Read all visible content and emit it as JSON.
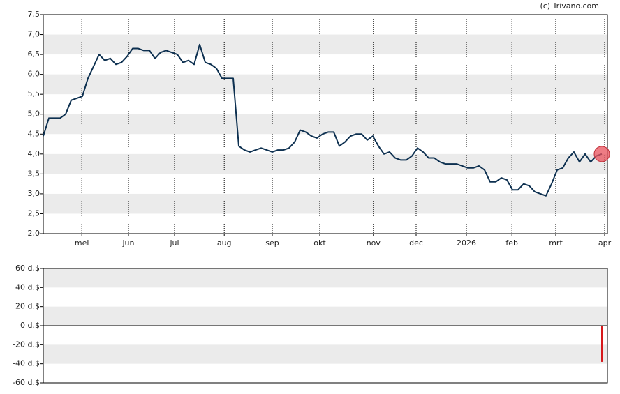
{
  "chart_data": [
    {
      "type": "line",
      "credit": "(c) Trivano.com",
      "xlim": [
        0,
        101
      ],
      "xticks": [
        {
          "value": 6.9,
          "label": "mei"
        },
        {
          "value": 15.25,
          "label": "jun"
        },
        {
          "value": 23.5,
          "label": "jul"
        },
        {
          "value": 32.4,
          "label": "aug"
        },
        {
          "value": 41,
          "label": "sep"
        },
        {
          "value": 49.5,
          "label": "okt"
        },
        {
          "value": 59.1,
          "label": "nov"
        },
        {
          "value": 66.75,
          "label": "dec"
        },
        {
          "value": 75.75,
          "label": "2026"
        },
        {
          "value": 83.9,
          "label": "feb"
        },
        {
          "value": 91.75,
          "label": "mrt"
        },
        {
          "value": 100.5,
          "label": "apr"
        }
      ],
      "ylim": [
        2.0,
        7.5
      ],
      "yticks": [
        {
          "value": 2.0,
          "label": "2,0"
        },
        {
          "value": 2.5,
          "label": "2,5"
        },
        {
          "value": 3.0,
          "label": "3,0"
        },
        {
          "value": 3.5,
          "label": "3,5"
        },
        {
          "value": 4.0,
          "label": "4,0"
        },
        {
          "value": 4.5,
          "label": "4,5"
        },
        {
          "value": 5.0,
          "label": "5,0"
        },
        {
          "value": 5.5,
          "label": "5,5"
        },
        {
          "value": 6.0,
          "label": "6,0"
        },
        {
          "value": 6.5,
          "label": "6,5"
        },
        {
          "value": 7.0,
          "label": "7,0"
        },
        {
          "value": 7.5,
          "label": "7,5"
        }
      ],
      "grid": "bands",
      "color": "#0d3050",
      "marker_color": "#e8505b",
      "values": [
        4.45,
        4.9,
        4.9,
        4.9,
        5.0,
        5.35,
        5.4,
        5.45,
        5.9,
        6.2,
        6.5,
        6.35,
        6.4,
        6.25,
        6.3,
        6.45,
        6.65,
        6.65,
        6.6,
        6.6,
        6.4,
        6.55,
        6.6,
        6.55,
        6.5,
        6.3,
        6.35,
        6.25,
        6.75,
        6.3,
        6.25,
        6.15,
        5.9,
        5.9,
        5.9,
        4.2,
        4.1,
        4.05,
        4.1,
        4.15,
        4.1,
        4.05,
        4.1,
        4.1,
        4.15,
        4.3,
        4.6,
        4.55,
        4.45,
        4.4,
        4.5,
        4.55,
        4.55,
        4.2,
        4.3,
        4.45,
        4.5,
        4.5,
        4.35,
        4.45,
        4.2,
        4.0,
        4.05,
        3.9,
        3.85,
        3.85,
        3.95,
        4.15,
        4.05,
        3.9,
        3.9,
        3.8,
        3.75,
        3.75,
        3.75,
        3.7,
        3.65,
        3.65,
        3.7,
        3.6,
        3.3,
        3.3,
        3.4,
        3.35,
        3.1,
        3.1,
        3.25,
        3.2,
        3.05,
        3.0,
        2.95,
        3.25,
        3.6,
        3.65,
        3.9,
        4.05,
        3.8,
        4.0,
        3.8,
        3.95,
        4.0
      ]
    },
    {
      "type": "bar",
      "xlim": [
        0,
        101
      ],
      "ylim": [
        -60,
        60
      ],
      "yticks": [
        {
          "value": -60,
          "label": "-60 d.$"
        },
        {
          "value": -40,
          "label": "-40 d.$"
        },
        {
          "value": -20,
          "label": "-20 d.$"
        },
        {
          "value": 0,
          "label": "0 d.$"
        },
        {
          "value": 20,
          "label": "20 d.$"
        },
        {
          "value": 40,
          "label": "40 d.$"
        },
        {
          "value": 60,
          "label": "60 d.$"
        }
      ],
      "grid": "bands",
      "color": "#d7191c",
      "x": [
        100
      ],
      "values": [
        -38
      ]
    }
  ]
}
